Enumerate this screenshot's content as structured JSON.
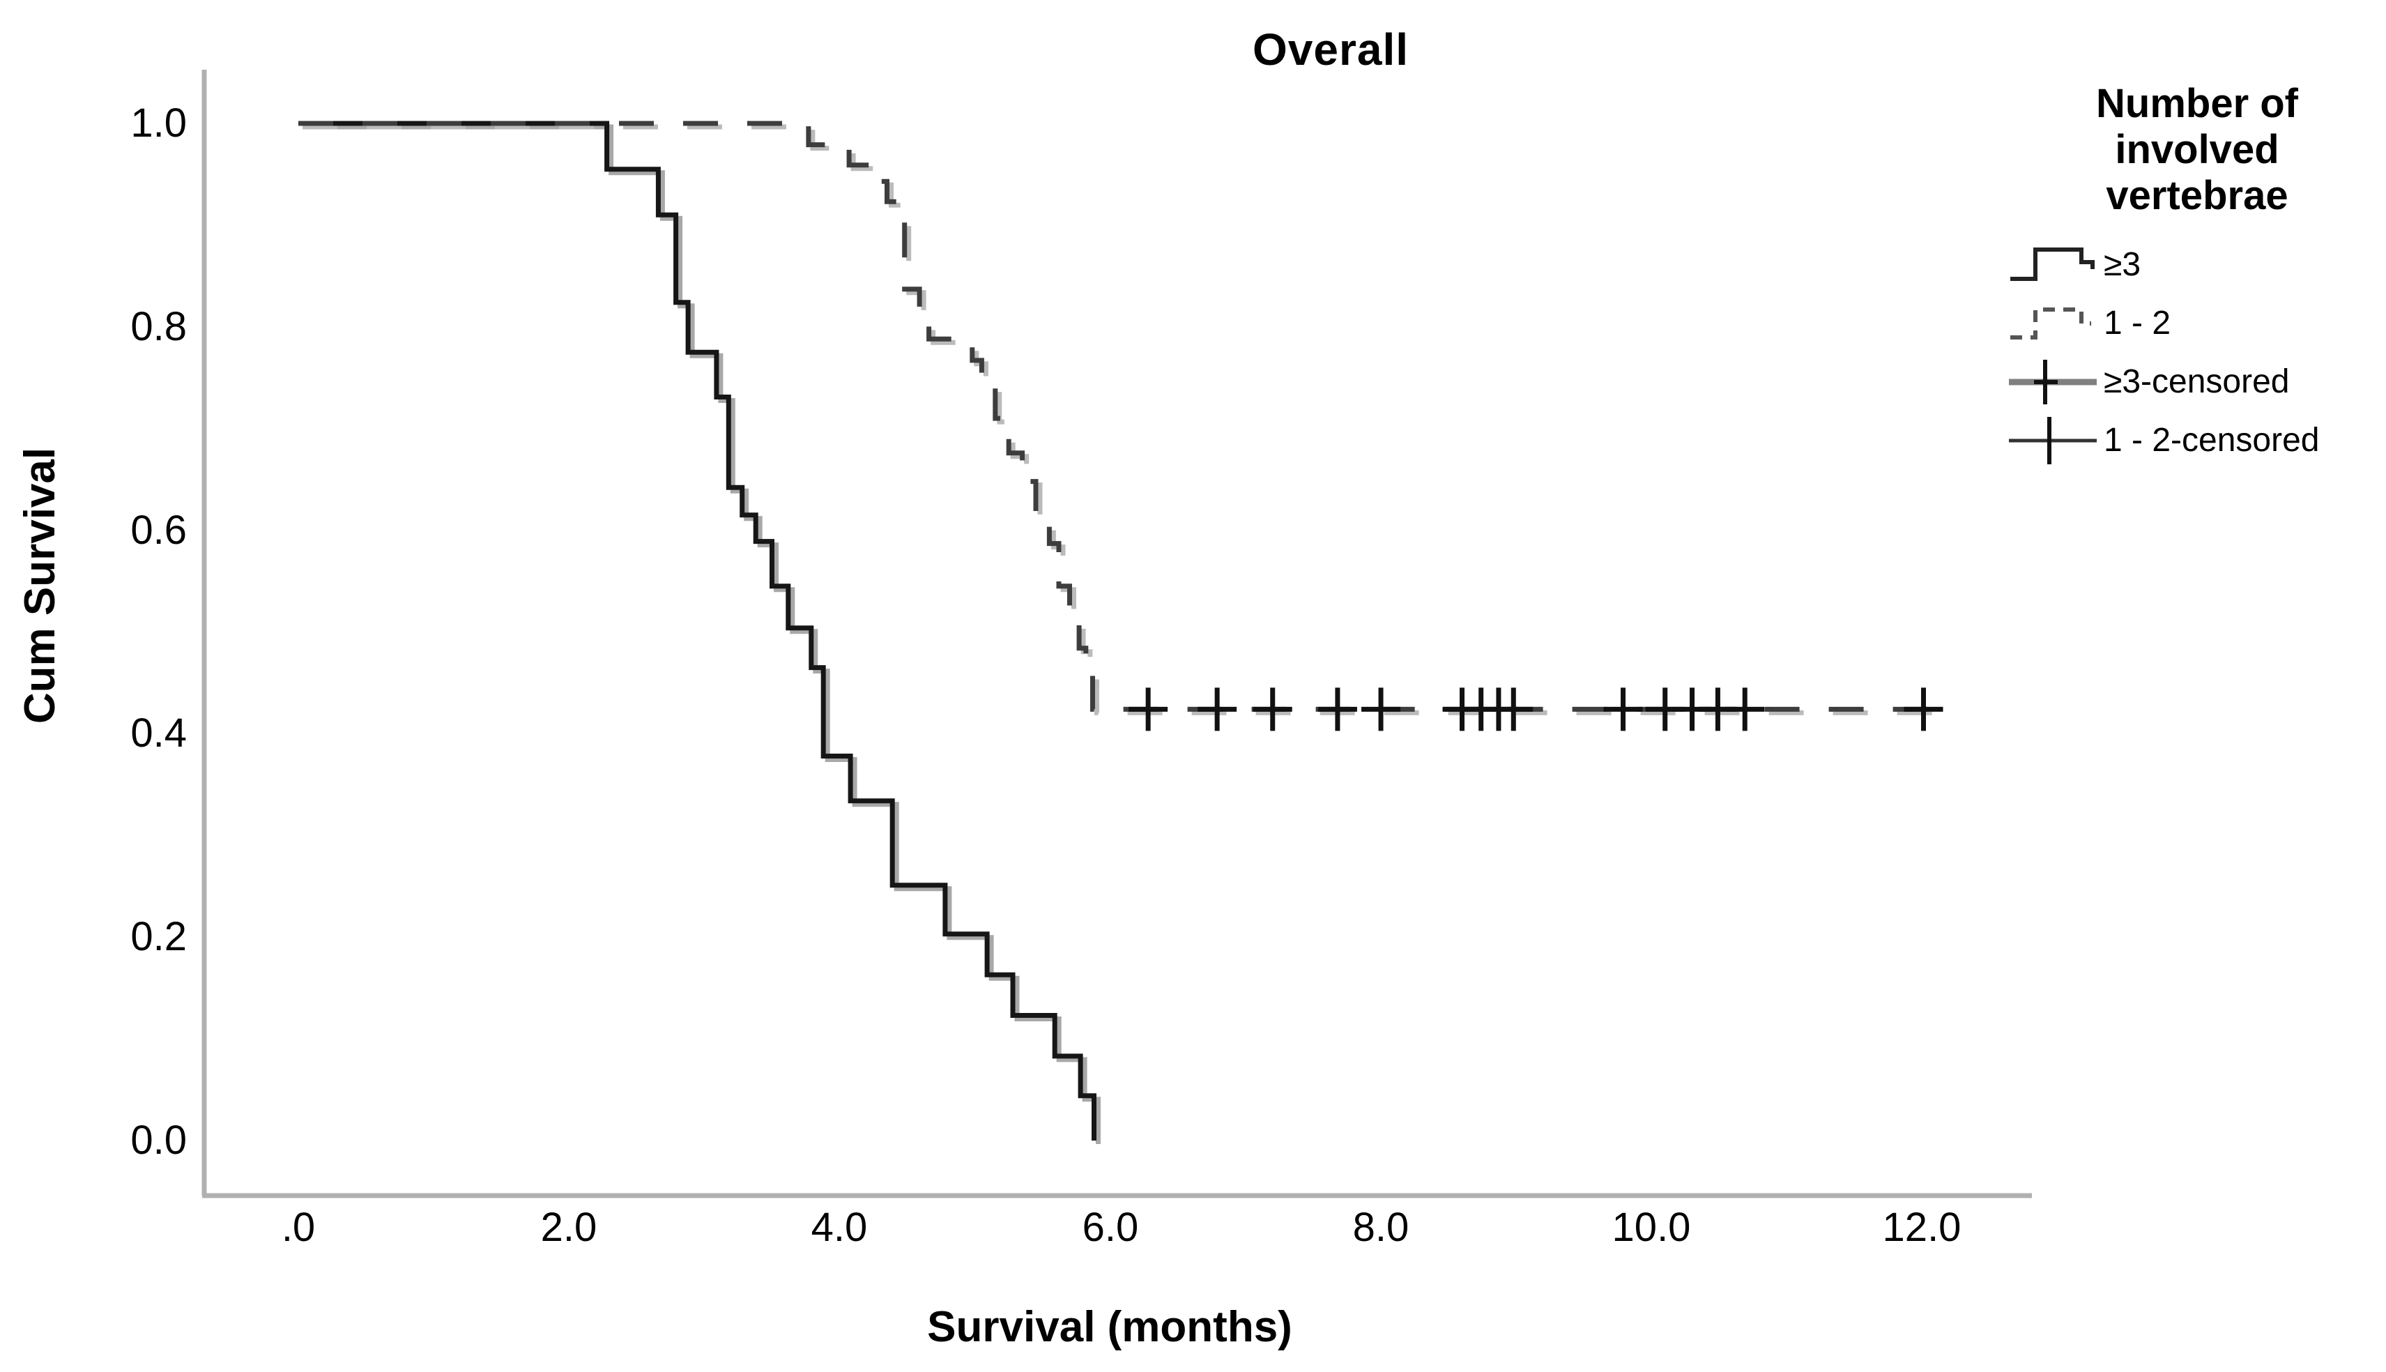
{
  "title": "Overall",
  "axes": {
    "x_label": "Survival (months)",
    "y_label": "Cum Survival",
    "x_ticks": [
      ".0",
      "2.0",
      "4.0",
      "6.0",
      "8.0",
      "10.0",
      "12.0"
    ],
    "y_ticks": [
      "1.0",
      "0.8",
      "0.6",
      "0.4",
      "0.2",
      "0.0"
    ]
  },
  "legend": {
    "title_lines": [
      "Number of",
      "involved",
      "vertebrae"
    ],
    "items": [
      {
        "label": "≥3",
        "glyph": "solid-step-line-icon"
      },
      {
        "label": "1 - 2",
        "glyph": "dashed-step-line-icon"
      },
      {
        "label": "≥3-censored",
        "glyph": "censored-plus-on-thick-line-icon"
      },
      {
        "label": "1 - 2-censored",
        "glyph": "censored-plus-on-thin-line-icon"
      }
    ]
  },
  "colors": {
    "axis_line": "#b0b0b0",
    "solid_curve": "#161616",
    "dashed_curve": "#3d3d3d",
    "curve_shadow": "#a8a8a8",
    "censor_mark": "#111111",
    "text": "#000000",
    "background": "#ffffff"
  },
  "chart_data": {
    "type": "line",
    "subtype": "kaplan-meier-step",
    "title": "Overall",
    "xlabel": "Survival (months)",
    "ylabel": "Cum Survival",
    "xlim": [
      0,
      12.6
    ],
    "ylim": [
      0.0,
      1.05
    ],
    "x_tick_values": [
      0,
      2,
      4,
      6,
      8,
      10,
      12
    ],
    "y_tick_values": [
      1.0,
      0.8,
      0.6,
      0.4,
      0.2,
      0.0
    ],
    "grid": false,
    "legend_position": "right",
    "series": [
      {
        "name": "≥3",
        "style": "solid",
        "start": [
          0,
          1.0
        ],
        "steps": [
          [
            2.28,
            0.955
          ],
          [
            2.66,
            0.91
          ],
          [
            2.79,
            0.824
          ],
          [
            2.88,
            0.775
          ],
          [
            3.09,
            0.731
          ],
          [
            3.18,
            0.642
          ],
          [
            3.28,
            0.615
          ],
          [
            3.38,
            0.589
          ],
          [
            3.5,
            0.545
          ],
          [
            3.62,
            0.504
          ],
          [
            3.79,
            0.465
          ],
          [
            3.88,
            0.378
          ],
          [
            4.08,
            0.334
          ],
          [
            4.39,
            0.251
          ],
          [
            4.78,
            0.203
          ],
          [
            5.09,
            0.163
          ],
          [
            5.28,
            0.123
          ],
          [
            5.59,
            0.083
          ],
          [
            5.78,
            0.044
          ],
          [
            5.88,
            0.0
          ]
        ],
        "end_t": 5.88
      },
      {
        "name": "1 - 2",
        "style": "dashed",
        "start": [
          0,
          1.0
        ],
        "steps": [
          [
            3.77,
            0.979
          ],
          [
            4.07,
            0.959
          ],
          [
            4.27,
            0.943
          ],
          [
            4.35,
            0.923
          ],
          [
            4.45,
            0.908
          ],
          [
            4.48,
            0.837
          ],
          [
            4.59,
            0.808
          ],
          [
            4.66,
            0.788
          ],
          [
            4.98,
            0.767
          ],
          [
            5.05,
            0.746
          ],
          [
            5.15,
            0.71
          ],
          [
            5.25,
            0.676
          ],
          [
            5.35,
            0.648
          ],
          [
            5.45,
            0.616
          ],
          [
            5.55,
            0.587
          ],
          [
            5.62,
            0.545
          ],
          [
            5.7,
            0.51
          ],
          [
            5.77,
            0.484
          ],
          [
            5.82,
            0.462
          ],
          [
            5.87,
            0.424
          ]
        ],
        "end_t": 12.1
      }
    ],
    "censored": [
      {
        "series": "≥3",
        "times": [],
        "v": null
      },
      {
        "series": "1 - 2",
        "v": 0.424,
        "times": [
          6.28,
          6.79,
          7.2,
          7.68,
          8.0,
          8.6,
          8.74,
          8.87,
          8.98,
          9.79,
          10.1,
          10.3,
          10.49,
          10.69,
          12.01
        ]
      }
    ]
  }
}
